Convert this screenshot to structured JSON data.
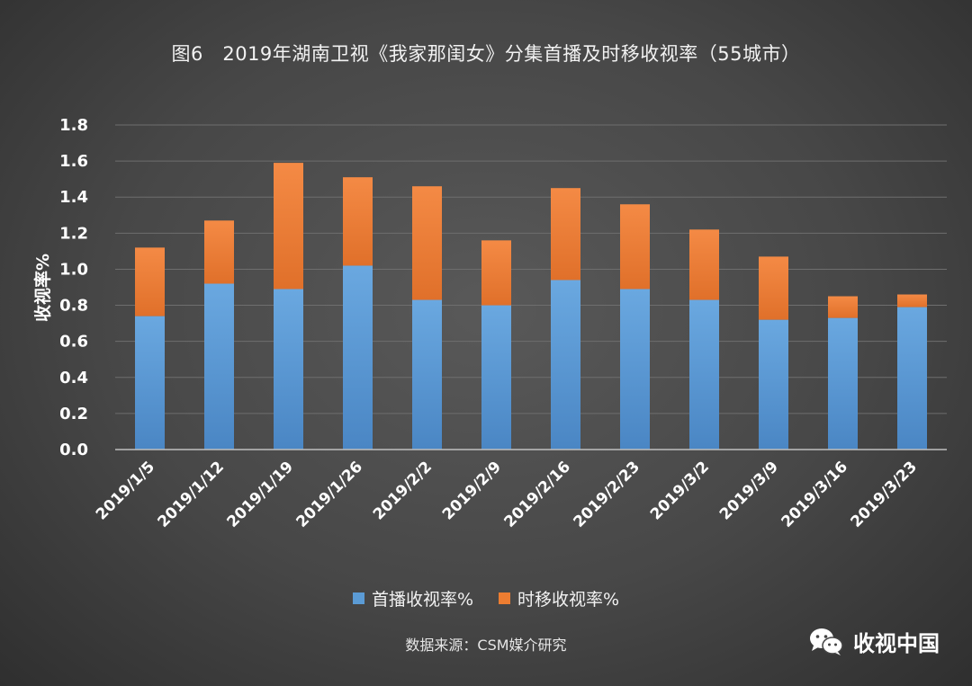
{
  "chart_data": {
    "type": "bar",
    "stacked": true,
    "title": "图6　2019年湖南卫视《我家那闺女》分集首播及时移收视率（55城市）",
    "ylabel": "收视率%",
    "xlabel": "",
    "ylim": [
      0,
      1.8
    ],
    "yticks": [
      "0.0",
      "0.2",
      "0.4",
      "0.6",
      "0.8",
      "1.0",
      "1.2",
      "1.4",
      "1.6",
      "1.8"
    ],
    "ytick_values": [
      0,
      0.2,
      0.4,
      0.6,
      0.8,
      1.0,
      1.2,
      1.4,
      1.6,
      1.8
    ],
    "grid": true,
    "legend_position": "bottom",
    "categories": [
      "2019/1/5",
      "2019/1/12",
      "2019/1/19",
      "2019/1/26",
      "2019/2/2",
      "2019/2/9",
      "2019/2/16",
      "2019/2/23",
      "2019/3/2",
      "2019/3/9",
      "2019/3/16",
      "2019/3/23"
    ],
    "series": [
      {
        "name": "首播收视率%",
        "color": "#5b9bd5",
        "values": [
          0.74,
          0.92,
          0.89,
          1.02,
          0.83,
          0.8,
          0.94,
          0.89,
          0.83,
          0.72,
          0.73,
          0.79
        ]
      },
      {
        "name": "时移收视率%",
        "color": "#ed7d31",
        "values": [
          0.38,
          0.35,
          0.7,
          0.49,
          0.63,
          0.36,
          0.51,
          0.47,
          0.39,
          0.35,
          0.12,
          0.07
        ]
      }
    ]
  },
  "footer": {
    "source": "数据来源：CSM媒介研究",
    "brand": "收视中国"
  },
  "icons": {
    "brand_icon": "wechat-icon"
  }
}
